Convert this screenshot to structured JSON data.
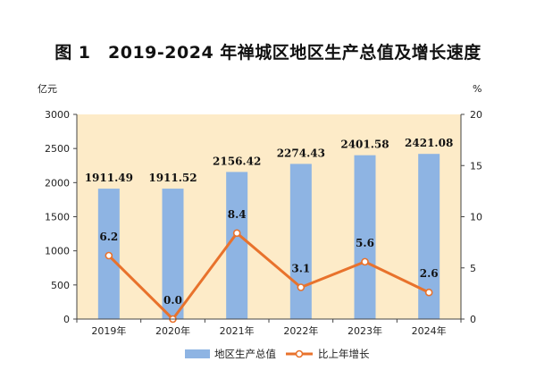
{
  "chart_data": {
    "title": "图 1　2019-2024 年禅城区地区生产总值及增长速度",
    "type": "bar+line",
    "categories": [
      "2019年",
      "2020年",
      "2021年",
      "2022年",
      "2023年",
      "2024年"
    ],
    "series": [
      {
        "name": "地区生产总值",
        "type": "bar",
        "axis": "left",
        "values": [
          1911.49,
          1911.52,
          2156.42,
          2274.43,
          2401.58,
          2421.08
        ],
        "labels": [
          "1911.49",
          "1911.52",
          "2156.42",
          "2274.43",
          "2401.58",
          "2421.08"
        ],
        "color": "#8eb4e3"
      },
      {
        "name": "比上年增长",
        "type": "line",
        "axis": "right",
        "values": [
          6.2,
          0.0,
          8.4,
          3.1,
          5.6,
          2.6
        ],
        "labels": [
          "6.2",
          "0.0",
          "8.4",
          "3.1",
          "5.6",
          "2.6"
        ],
        "color": "#e8722c"
      }
    ],
    "left_axis": {
      "unit": "亿元",
      "range": [
        0,
        3000
      ],
      "ticks": [
        "0",
        "500",
        "1000",
        "1500",
        "2000",
        "2500",
        "3000"
      ]
    },
    "right_axis": {
      "unit": "%",
      "range": [
        0,
        20
      ],
      "ticks": [
        "0",
        "5",
        "10",
        "15",
        "20"
      ]
    },
    "grid": false,
    "plot_background": "#fdebc8",
    "legend_position": "bottom"
  }
}
